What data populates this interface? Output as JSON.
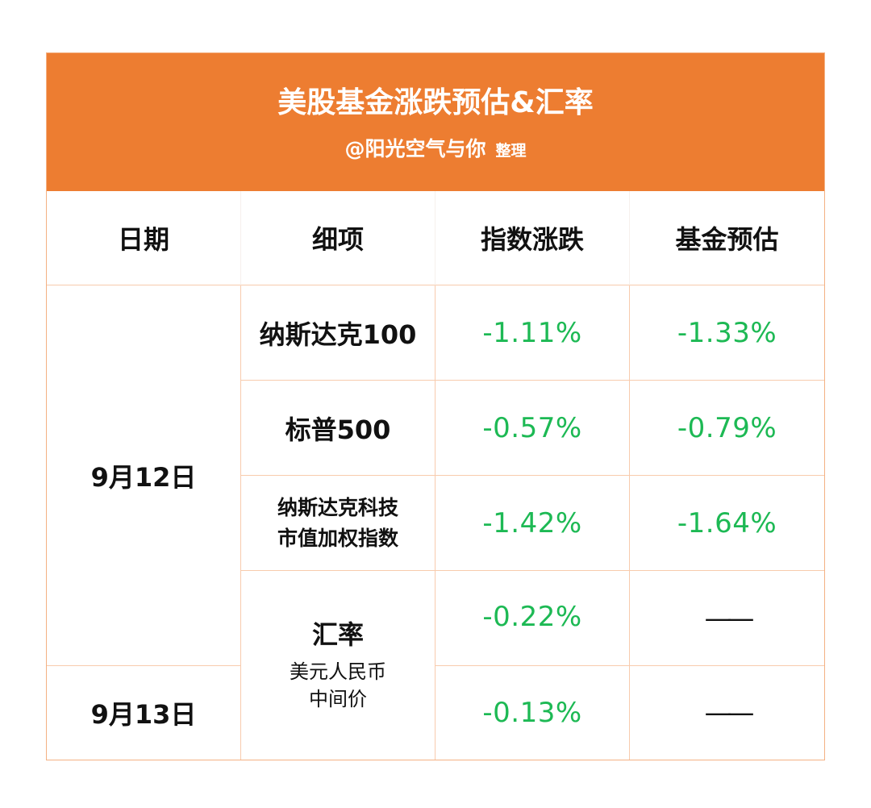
{
  "header": {
    "title": "美股基金涨跌预估&汇率",
    "author": "@阳光空气与你",
    "author_tag": "整理"
  },
  "columns": [
    "日期",
    "细项",
    "指数涨跌",
    "基金预估"
  ],
  "dates": {
    "d1": "9月12日",
    "d2": "9月13日"
  },
  "rows": [
    {
      "item": "纳斯达克100",
      "index_change": "-1.11%",
      "fund_estimate": "-1.33%"
    },
    {
      "item": "标普500",
      "index_change": "-0.57%",
      "fund_estimate": "-0.79%"
    },
    {
      "item_lines": [
        "纳斯达克科技",
        "市值加权指数"
      ],
      "index_change": "-1.42%",
      "fund_estimate": "-1.64%"
    }
  ],
  "fx": {
    "item": "汇率",
    "item_sub": [
      "美元人民币",
      "中间价"
    ],
    "d1_change": "-0.22%",
    "d1_estimate": "——",
    "d2_change": "-0.13%",
    "d2_estimate": "——"
  },
  "colors": {
    "header_bg": "#ed7d31",
    "negative": "#1db954",
    "border": "#f8cbad"
  }
}
